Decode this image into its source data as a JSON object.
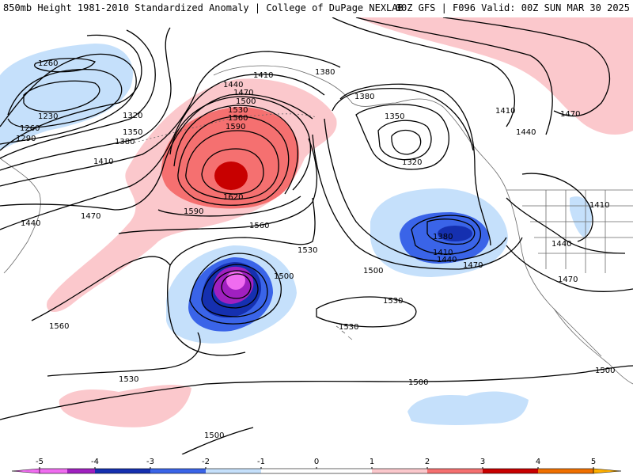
{
  "header": {
    "title_left": "850mb Height 1981-2010 Standardized Anomaly | College of DuPage NEXLAB",
    "title_right": "00Z GFS | F096 Valid: 00Z SUN MAR 30 2025"
  },
  "colors": {
    "anomaly_scale": [
      {
        "min": -5,
        "max": -4.5,
        "color": "#f06cf0"
      },
      {
        "min": -4.5,
        "max": -4,
        "color": "#a020c0"
      },
      {
        "min": -4,
        "max": -3,
        "color": "#1530b0"
      },
      {
        "min": -3,
        "max": -2,
        "color": "#3a64e8"
      },
      {
        "min": -2,
        "max": -1,
        "color": "#c5e0fb"
      },
      {
        "min": -1,
        "max": 1,
        "color": "#ffffff"
      },
      {
        "min": 1,
        "max": 2,
        "color": "#fbc8cc"
      },
      {
        "min": 2,
        "max": 3,
        "color": "#f57070"
      },
      {
        "min": 3,
        "max": 4,
        "color": "#c80000"
      },
      {
        "min": 4,
        "max": 5,
        "color": "#f07000"
      },
      {
        "min": 5,
        "max": 5.5,
        "color": "#ffb000"
      }
    ]
  },
  "legend": {
    "ticks": [
      "-5",
      "-4",
      "-3",
      "-2",
      "-1",
      "0",
      "1",
      "2",
      "3",
      "4",
      "5"
    ]
  },
  "contour_labels": [
    "1260",
    "1230",
    "1260",
    "1290",
    "1320",
    "1350",
    "1380",
    "1410",
    "1440",
    "1470",
    "1440",
    "1410",
    "1380",
    "1470",
    "1500",
    "1530",
    "1560",
    "1590",
    "1620",
    "1590",
    "1560",
    "1530",
    "1500",
    "1560",
    "1530",
    "1380",
    "1350",
    "1320",
    "1380",
    "1410",
    "1440",
    "1470",
    "1500",
    "1410",
    "1440",
    "1470",
    "1410",
    "1440",
    "1470",
    "1530",
    "1530",
    "1500",
    "1500",
    "1500"
  ]
}
